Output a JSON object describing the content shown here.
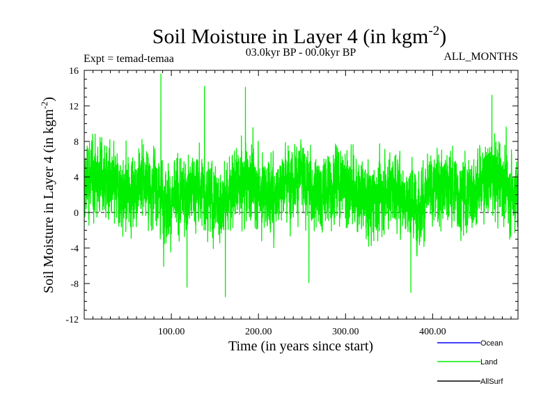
{
  "chart_data": {
    "type": "line",
    "title": "Soil Moisture in Layer 4 (in kgm",
    "title_sup": "-2",
    "title_close": ")",
    "subtitle_left": "Expt = temad-temaa",
    "subtitle_center": "03.0kyr BP - 00.0kyr BP",
    "subtitle_right": "ALL_MONTHS",
    "xlabel": "Time (in years since start)",
    "ylabel": "Soil Moisture in Layer 4 (in kgm",
    "ylabel_sup": "-2",
    "ylabel_close": ")",
    "xlim": [
      0,
      498
    ],
    "ylim": [
      -12,
      16
    ],
    "x_ticks": [
      100,
      200,
      300,
      400
    ],
    "x_tick_labels": [
      "100.00",
      "200.00",
      "300.00",
      "400.00"
    ],
    "y_ticks": [
      -12,
      -8,
      -4,
      0,
      4,
      8,
      12,
      16
    ],
    "y_tick_labels": [
      "-12",
      "-8",
      "-4",
      "0",
      "4",
      "8",
      "12",
      "16"
    ],
    "zero_line": true,
    "series": [
      {
        "name": "Ocean",
        "color": "#0000ff",
        "values": []
      },
      {
        "name": "Land",
        "color": "#00ee00",
        "n_points": 5976,
        "mean": 2.5,
        "min": -9.5,
        "max": 15.6,
        "peaks": [
          [
            88,
            15.6
          ],
          [
            162,
            -9.5
          ],
          [
            138,
            14.2
          ],
          [
            185,
            14.1
          ],
          [
            258,
            -7.9
          ],
          [
            375,
            -9.0
          ],
          [
            468,
            13.2
          ],
          [
            118,
            -8.4
          ]
        ]
      },
      {
        "name": "AllSurf",
        "color": "#000000",
        "values": []
      }
    ],
    "legend": {
      "position": "bottom-right",
      "entries": [
        {
          "label": "Ocean",
          "color": "#0000ff"
        },
        {
          "label": "Land",
          "color": "#00ee00"
        },
        {
          "label": "AllSurf",
          "color": "#000000"
        }
      ]
    }
  }
}
